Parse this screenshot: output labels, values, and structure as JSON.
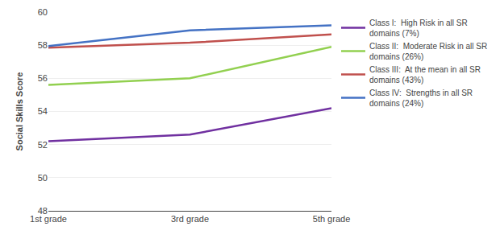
{
  "chart_data": {
    "type": "line",
    "categories": [
      "1st grade",
      "3rd grade",
      "5th grade"
    ],
    "series": [
      {
        "name": "Class I:  High Risk in all SR\ndomains (7%)",
        "color": "#7030A0",
        "values": [
          52.2,
          52.6,
          54.2
        ]
      },
      {
        "name": "Class II:  Moderate Risk in all SR\ndomains (26%)",
        "color": "#92D050",
        "values": [
          55.6,
          56.0,
          57.9
        ]
      },
      {
        "name": "Class III:  At the mean in all SR\ndomains (43%)",
        "color": "#C0504D",
        "values": [
          57.85,
          58.15,
          58.65
        ]
      },
      {
        "name": "Class IV:  Strengths in all SR\ndomains (24%)",
        "color": "#4472C4",
        "values": [
          57.95,
          58.9,
          59.2
        ]
      }
    ],
    "ylabel": "Social Skills Score",
    "ylim": [
      48,
      60
    ],
    "yticks": [
      48,
      50,
      52,
      54,
      56,
      58,
      60
    ],
    "grid": true,
    "legend": "right"
  }
}
